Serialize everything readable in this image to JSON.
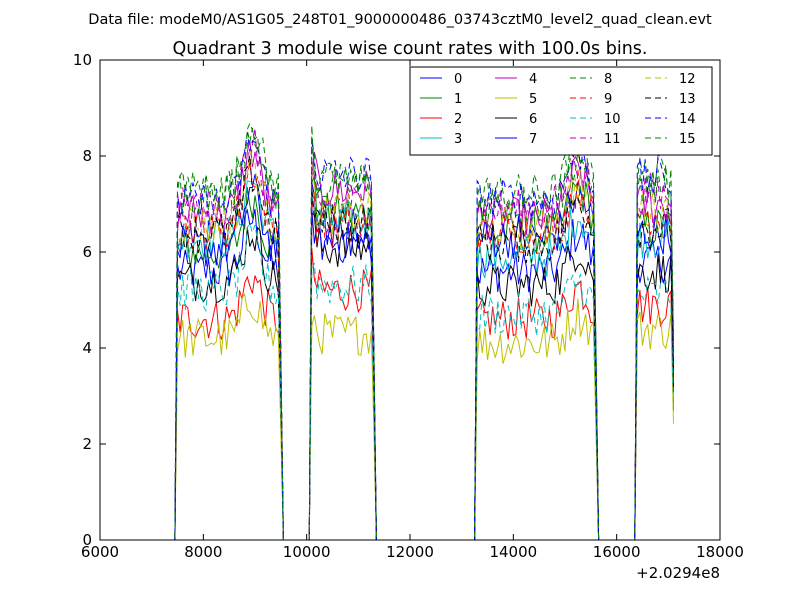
{
  "figure": {
    "suptitle": "Data file: modeM0/AS1G05_248T01_9000000486_03743cztM0_level2_quad_clean.evt"
  },
  "chart_data": {
    "type": "line",
    "title": "Quadrant 3 module wise count rates with 100.0s bins.",
    "xlabel": "",
    "ylabel": "",
    "xlim": [
      6000,
      18000
    ],
    "ylim": [
      0,
      10
    ],
    "x_offset_label": "+2.0294e8",
    "xticks": [
      6000,
      8000,
      10000,
      12000,
      14000,
      16000,
      18000
    ],
    "yticks": [
      0,
      2,
      4,
      6,
      8,
      10
    ],
    "grid": false,
    "legend": {
      "placement": "top-right",
      "columns": 4
    },
    "segments": [
      {
        "start": 7500,
        "end": 9500
      },
      {
        "start": 10100,
        "end": 11300
      },
      {
        "start": 13300,
        "end": 15600
      },
      {
        "start": 16400,
        "end": 17100
      }
    ],
    "series": [
      {
        "name": "0",
        "color": "#0000ff",
        "dashed": false,
        "levels": [
          5.6,
          6.5,
          5.6,
          5.8
        ]
      },
      {
        "name": "1",
        "color": "#008000",
        "dashed": false,
        "levels": [
          6.0,
          6.8,
          6.4,
          6.5
        ]
      },
      {
        "name": "2",
        "color": "#ff0000",
        "dashed": false,
        "levels": [
          4.6,
          5.2,
          4.6,
          4.9
        ]
      },
      {
        "name": "3",
        "color": "#00bfbf",
        "dashed": false,
        "levels": [
          6.3,
          6.6,
          5.9,
          6.3
        ]
      },
      {
        "name": "4",
        "color": "#bf00bf",
        "dashed": false,
        "levels": [
          6.8,
          7.3,
          6.7,
          7.0
        ]
      },
      {
        "name": "5",
        "color": "#bfbf00",
        "dashed": false,
        "levels": [
          4.2,
          4.3,
          4.1,
          4.4
        ]
      },
      {
        "name": "6",
        "color": "#000000",
        "dashed": false,
        "levels": [
          5.4,
          6.1,
          5.3,
          5.6
        ]
      },
      {
        "name": "7",
        "color": "#0000ff",
        "dashed": false,
        "levels": [
          6.1,
          6.2,
          6.3,
          6.4
        ]
      },
      {
        "name": "8",
        "color": "#008000",
        "dashed": true,
        "levels": [
          7.3,
          7.4,
          7.2,
          7.6
        ]
      },
      {
        "name": "9",
        "color": "#ff0000",
        "dashed": true,
        "levels": [
          6.5,
          6.5,
          6.4,
          6.8
        ]
      },
      {
        "name": "10",
        "color": "#00bfbf",
        "dashed": true,
        "levels": [
          5.2,
          5.3,
          4.7,
          5.1
        ]
      },
      {
        "name": "11",
        "color": "#bf00bf",
        "dashed": true,
        "levels": [
          6.9,
          7.0,
          6.9,
          7.2
        ]
      },
      {
        "name": "12",
        "color": "#bfbf00",
        "dashed": true,
        "levels": [
          6.6,
          6.8,
          6.5,
          6.9
        ]
      },
      {
        "name": "13",
        "color": "#000000",
        "dashed": true,
        "levels": [
          6.4,
          6.6,
          6.2,
          6.5
        ]
      },
      {
        "name": "14",
        "color": "#0000ff",
        "dashed": true,
        "levels": [
          7.0,
          7.6,
          7.1,
          7.5
        ]
      },
      {
        "name": "15",
        "color": "#008000",
        "dashed": true,
        "levels": [
          7.2,
          7.5,
          7.0,
          7.4
        ]
      }
    ]
  }
}
